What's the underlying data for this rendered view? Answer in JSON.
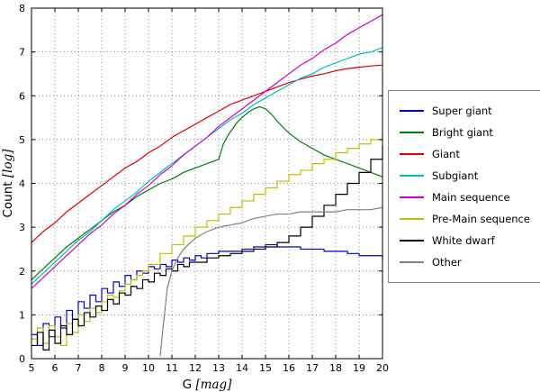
{
  "chart_data": {
    "type": "line",
    "title": "",
    "xlabel": "G [mag]",
    "ylabel": "Count [log]",
    "xlim": [
      5,
      20
    ],
    "ylim": [
      0,
      8
    ],
    "xticks": [
      5,
      6,
      7,
      8,
      9,
      10,
      11,
      12,
      13,
      14,
      15,
      16,
      17,
      18,
      19,
      20
    ],
    "yticks": [
      0,
      1,
      2,
      3,
      4,
      5,
      6,
      7,
      8
    ],
    "grid": "dotted",
    "legend_position": "right-outside",
    "series": [
      {
        "name": "Super giant",
        "color": "#0000cd",
        "step": true,
        "points": [
          [
            5,
            0.55
          ],
          [
            5.25,
            0.3
          ],
          [
            5.5,
            0.8
          ],
          [
            5.75,
            0.5
          ],
          [
            6,
            0.95
          ],
          [
            6.25,
            0.7
          ],
          [
            6.5,
            1.1
          ],
          [
            6.75,
            0.9
          ],
          [
            7,
            1.3
          ],
          [
            7.25,
            1.15
          ],
          [
            7.5,
            1.45
          ],
          [
            7.75,
            1.3
          ],
          [
            8,
            1.6
          ],
          [
            8.25,
            1.5
          ],
          [
            8.5,
            1.75
          ],
          [
            8.75,
            1.65
          ],
          [
            9,
            1.9
          ],
          [
            9.25,
            1.8
          ],
          [
            9.5,
            2.0
          ],
          [
            9.75,
            1.95
          ],
          [
            10,
            2.1
          ],
          [
            10.25,
            2.05
          ],
          [
            10.5,
            2.15
          ],
          [
            10.75,
            2.1
          ],
          [
            11,
            2.25
          ],
          [
            11.25,
            2.2
          ],
          [
            11.5,
            2.3
          ],
          [
            11.75,
            2.25
          ],
          [
            12,
            2.35
          ],
          [
            12.25,
            2.3
          ],
          [
            12.5,
            2.4
          ],
          [
            13,
            2.45
          ],
          [
            13.5,
            2.45
          ],
          [
            14,
            2.5
          ],
          [
            14.5,
            2.55
          ],
          [
            15,
            2.6
          ],
          [
            15.5,
            2.55
          ],
          [
            16,
            2.55
          ],
          [
            16.5,
            2.5
          ],
          [
            17,
            2.5
          ],
          [
            17.5,
            2.45
          ],
          [
            18,
            2.45
          ],
          [
            18.5,
            2.4
          ],
          [
            19,
            2.35
          ],
          [
            19.5,
            2.35
          ],
          [
            20,
            2.25
          ]
        ]
      },
      {
        "name": "Bright giant",
        "color": "#007f00",
        "step": false,
        "points": [
          [
            5,
            1.8
          ],
          [
            5.5,
            2.05
          ],
          [
            6,
            2.3
          ],
          [
            6.5,
            2.55
          ],
          [
            7,
            2.75
          ],
          [
            7.5,
            2.95
          ],
          [
            8,
            3.15
          ],
          [
            8.5,
            3.35
          ],
          [
            9,
            3.5
          ],
          [
            9.5,
            3.7
          ],
          [
            10,
            3.85
          ],
          [
            10.5,
            4.0
          ],
          [
            11,
            4.1
          ],
          [
            11.5,
            4.25
          ],
          [
            12,
            4.35
          ],
          [
            12.5,
            4.45
          ],
          [
            13,
            4.55
          ],
          [
            13.2,
            4.9
          ],
          [
            13.4,
            5.1
          ],
          [
            13.6,
            5.25
          ],
          [
            13.8,
            5.4
          ],
          [
            14,
            5.5
          ],
          [
            14.25,
            5.62
          ],
          [
            14.5,
            5.7
          ],
          [
            14.75,
            5.75
          ],
          [
            15,
            5.7
          ],
          [
            15.25,
            5.58
          ],
          [
            15.5,
            5.42
          ],
          [
            15.75,
            5.28
          ],
          [
            16,
            5.15
          ],
          [
            16.5,
            4.95
          ],
          [
            17,
            4.8
          ],
          [
            17.5,
            4.65
          ],
          [
            18,
            4.55
          ],
          [
            18.5,
            4.45
          ],
          [
            19,
            4.35
          ],
          [
            19.5,
            4.25
          ],
          [
            20,
            4.15
          ]
        ]
      },
      {
        "name": "Giant",
        "color": "#dd0000",
        "step": false,
        "points": [
          [
            5,
            2.65
          ],
          [
            5.5,
            2.9
          ],
          [
            6,
            3.1
          ],
          [
            6.5,
            3.35
          ],
          [
            7,
            3.55
          ],
          [
            7.5,
            3.75
          ],
          [
            8,
            3.95
          ],
          [
            8.5,
            4.15
          ],
          [
            9,
            4.35
          ],
          [
            9.5,
            4.5
          ],
          [
            10,
            4.7
          ],
          [
            10.5,
            4.85
          ],
          [
            11,
            5.05
          ],
          [
            11.5,
            5.2
          ],
          [
            12,
            5.35
          ],
          [
            12.5,
            5.5
          ],
          [
            13,
            5.65
          ],
          [
            13.5,
            5.8
          ],
          [
            14,
            5.9
          ],
          [
            14.5,
            6.0
          ],
          [
            15,
            6.1
          ],
          [
            15.5,
            6.2
          ],
          [
            16,
            6.3
          ],
          [
            16.5,
            6.38
          ],
          [
            17,
            6.45
          ],
          [
            17.5,
            6.5
          ],
          [
            18,
            6.57
          ],
          [
            18.5,
            6.62
          ],
          [
            19,
            6.65
          ],
          [
            19.5,
            6.68
          ],
          [
            20,
            6.7
          ]
        ]
      },
      {
        "name": "Subgiant",
        "color": "#00bfbf",
        "step": false,
        "points": [
          [
            5,
            1.7
          ],
          [
            5.5,
            1.95
          ],
          [
            6,
            2.2
          ],
          [
            6.5,
            2.45
          ],
          [
            7,
            2.7
          ],
          [
            7.5,
            2.9
          ],
          [
            8,
            3.15
          ],
          [
            8.5,
            3.4
          ],
          [
            9,
            3.6
          ],
          [
            9.5,
            3.8
          ],
          [
            10,
            4.05
          ],
          [
            10.5,
            4.25
          ],
          [
            11,
            4.45
          ],
          [
            11.5,
            4.65
          ],
          [
            12,
            4.85
          ],
          [
            12.5,
            5.05
          ],
          [
            13,
            5.25
          ],
          [
            13.5,
            5.45
          ],
          [
            14,
            5.6
          ],
          [
            14.5,
            5.8
          ],
          [
            15,
            5.95
          ],
          [
            15.5,
            6.1
          ],
          [
            16,
            6.25
          ],
          [
            16.5,
            6.4
          ],
          [
            17,
            6.5
          ],
          [
            17.5,
            6.65
          ],
          [
            18,
            6.75
          ],
          [
            18.5,
            6.85
          ],
          [
            19,
            6.95
          ],
          [
            19.5,
            7.0
          ],
          [
            20,
            7.1
          ]
        ]
      },
      {
        "name": "Main sequence",
        "color": "#cc00cc",
        "step": false,
        "points": [
          [
            5,
            1.6
          ],
          [
            5.5,
            1.85
          ],
          [
            6,
            2.1
          ],
          [
            6.5,
            2.35
          ],
          [
            7,
            2.6
          ],
          [
            7.5,
            2.85
          ],
          [
            8,
            3.05
          ],
          [
            8.5,
            3.3
          ],
          [
            9,
            3.5
          ],
          [
            9.5,
            3.75
          ],
          [
            10,
            3.95
          ],
          [
            10.5,
            4.2
          ],
          [
            11,
            4.4
          ],
          [
            11.5,
            4.65
          ],
          [
            12,
            4.85
          ],
          [
            12.5,
            5.05
          ],
          [
            13,
            5.3
          ],
          [
            13.5,
            5.5
          ],
          [
            14,
            5.7
          ],
          [
            14.5,
            5.9
          ],
          [
            15,
            6.1
          ],
          [
            15.5,
            6.3
          ],
          [
            16,
            6.5
          ],
          [
            16.5,
            6.7
          ],
          [
            17,
            6.85
          ],
          [
            17.5,
            7.05
          ],
          [
            18,
            7.2
          ],
          [
            18.5,
            7.4
          ],
          [
            19,
            7.55
          ],
          [
            19.5,
            7.7
          ],
          [
            20,
            7.85
          ]
        ]
      },
      {
        "name": "Pre-Main sequence",
        "color": "#bfbf00",
        "step": true,
        "points": [
          [
            5,
            0.45
          ],
          [
            5.25,
            0.7
          ],
          [
            5.5,
            0.35
          ],
          [
            5.75,
            0.75
          ],
          [
            6,
            0.5
          ],
          [
            6.25,
            0.3
          ],
          [
            6.5,
            0.8
          ],
          [
            6.75,
            0.6
          ],
          [
            7,
            1.0
          ],
          [
            7.25,
            0.85
          ],
          [
            7.5,
            1.15
          ],
          [
            7.75,
            1.05
          ],
          [
            8,
            1.3
          ],
          [
            8.25,
            1.45
          ],
          [
            8.5,
            1.4
          ],
          [
            8.75,
            1.55
          ],
          [
            9,
            1.7
          ],
          [
            9.25,
            1.8
          ],
          [
            9.5,
            1.9
          ],
          [
            9.75,
            2.0
          ],
          [
            10,
            2.15
          ],
          [
            10.5,
            2.4
          ],
          [
            11,
            2.6
          ],
          [
            11.5,
            2.8
          ],
          [
            12,
            3.0
          ],
          [
            12.5,
            3.15
          ],
          [
            13,
            3.3
          ],
          [
            13.5,
            3.45
          ],
          [
            14,
            3.6
          ],
          [
            14.5,
            3.75
          ],
          [
            15,
            3.9
          ],
          [
            15.5,
            4.05
          ],
          [
            16,
            4.2
          ],
          [
            16.5,
            4.3
          ],
          [
            17,
            4.45
          ],
          [
            17.5,
            4.55
          ],
          [
            18,
            4.7
          ],
          [
            18.5,
            4.8
          ],
          [
            19,
            4.9
          ],
          [
            19.5,
            5.0
          ],
          [
            20,
            5.15
          ]
        ]
      },
      {
        "name": "White dwarf",
        "color": "#000000",
        "step": true,
        "points": [
          [
            5,
            0.3
          ],
          [
            5.25,
            0.6
          ],
          [
            5.5,
            0.2
          ],
          [
            5.75,
            0.65
          ],
          [
            6,
            0.35
          ],
          [
            6.25,
            0.75
          ],
          [
            6.5,
            0.55
          ],
          [
            6.75,
            0.9
          ],
          [
            7,
            0.75
          ],
          [
            7.25,
            1.05
          ],
          [
            7.5,
            0.95
          ],
          [
            7.75,
            1.2
          ],
          [
            8,
            1.1
          ],
          [
            8.25,
            1.35
          ],
          [
            8.5,
            1.25
          ],
          [
            8.75,
            1.5
          ],
          [
            9,
            1.45
          ],
          [
            9.25,
            1.65
          ],
          [
            9.5,
            1.6
          ],
          [
            9.75,
            1.8
          ],
          [
            10,
            1.75
          ],
          [
            10.25,
            1.95
          ],
          [
            10.5,
            1.9
          ],
          [
            10.75,
            2.05
          ],
          [
            11,
            2.0
          ],
          [
            11.25,
            2.15
          ],
          [
            11.5,
            2.1
          ],
          [
            11.75,
            2.2
          ],
          [
            12,
            2.2
          ],
          [
            12.5,
            2.3
          ],
          [
            13,
            2.35
          ],
          [
            13.5,
            2.4
          ],
          [
            14,
            2.45
          ],
          [
            14.5,
            2.5
          ],
          [
            15,
            2.55
          ],
          [
            15.5,
            2.65
          ],
          [
            16,
            2.8
          ],
          [
            16.5,
            3.0
          ],
          [
            17,
            3.25
          ],
          [
            17.5,
            3.5
          ],
          [
            18,
            3.75
          ],
          [
            18.5,
            4.0
          ],
          [
            19,
            4.25
          ],
          [
            19.5,
            4.55
          ],
          [
            20,
            4.85
          ]
        ]
      },
      {
        "name": "Other",
        "color": "#808080",
        "step": false,
        "points": [
          [
            10.5,
            0.05
          ],
          [
            10.6,
            0.6
          ],
          [
            10.7,
            1.1
          ],
          [
            10.8,
            1.6
          ],
          [
            11,
            2.0
          ],
          [
            11.25,
            2.3
          ],
          [
            11.5,
            2.5
          ],
          [
            12,
            2.75
          ],
          [
            12.5,
            2.9
          ],
          [
            13,
            3.0
          ],
          [
            13.5,
            3.05
          ],
          [
            14,
            3.1
          ],
          [
            14.5,
            3.2
          ],
          [
            15,
            3.25
          ],
          [
            15.5,
            3.3
          ],
          [
            16,
            3.3
          ],
          [
            16.5,
            3.35
          ],
          [
            17,
            3.35
          ],
          [
            17.5,
            3.35
          ],
          [
            18,
            3.35
          ],
          [
            18.5,
            3.4
          ],
          [
            19,
            3.4
          ],
          [
            19.5,
            3.4
          ],
          [
            20,
            3.45
          ]
        ]
      }
    ]
  }
}
